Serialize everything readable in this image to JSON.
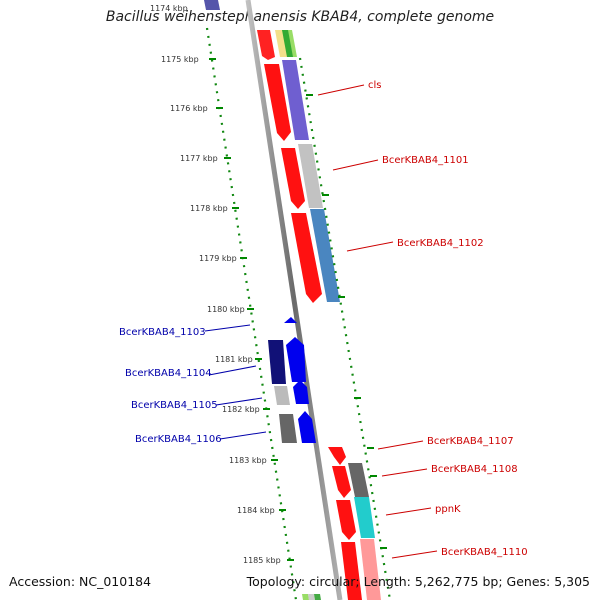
{
  "title": "Bacillus weihenstephanensis KBAB4, complete genome",
  "footer": {
    "accession": "Accession: NC_010184",
    "summary": "Topology: circular; Length: 5,262,775 bp; Genes: 5,305"
  },
  "scale": {
    "top_clipped": "1174 kbp",
    "ticks": [
      "1175 kbp",
      "1176 kbp",
      "1177 kbp",
      "1178 kbp",
      "1179 kbp",
      "1180 kbp",
      "1181 kbp",
      "1182 kbp",
      "1183 kbp",
      "1184 kbp",
      "1185 kbp"
    ]
  },
  "gene_labels": {
    "forward": [
      "cls",
      "BcerKBAB4_1101",
      "BcerKBAB4_1102",
      "BcerKBAB4_1107",
      "BcerKBAB4_1108",
      "ppnK",
      "BcerKBAB4_1110"
    ],
    "reverse": [
      "BcerKBAB4_1103",
      "BcerKBAB4_1104",
      "BcerKBAB4_1105",
      "BcerKBAB4_1106"
    ]
  },
  "colors": {
    "forward_label": "#cc0000",
    "reverse_label": "#0000aa",
    "gene_red": "#ff0000",
    "gene_blue": "#0000ff",
    "tick_green": "#008800",
    "backbone_gray": "#7a7a7a"
  }
}
